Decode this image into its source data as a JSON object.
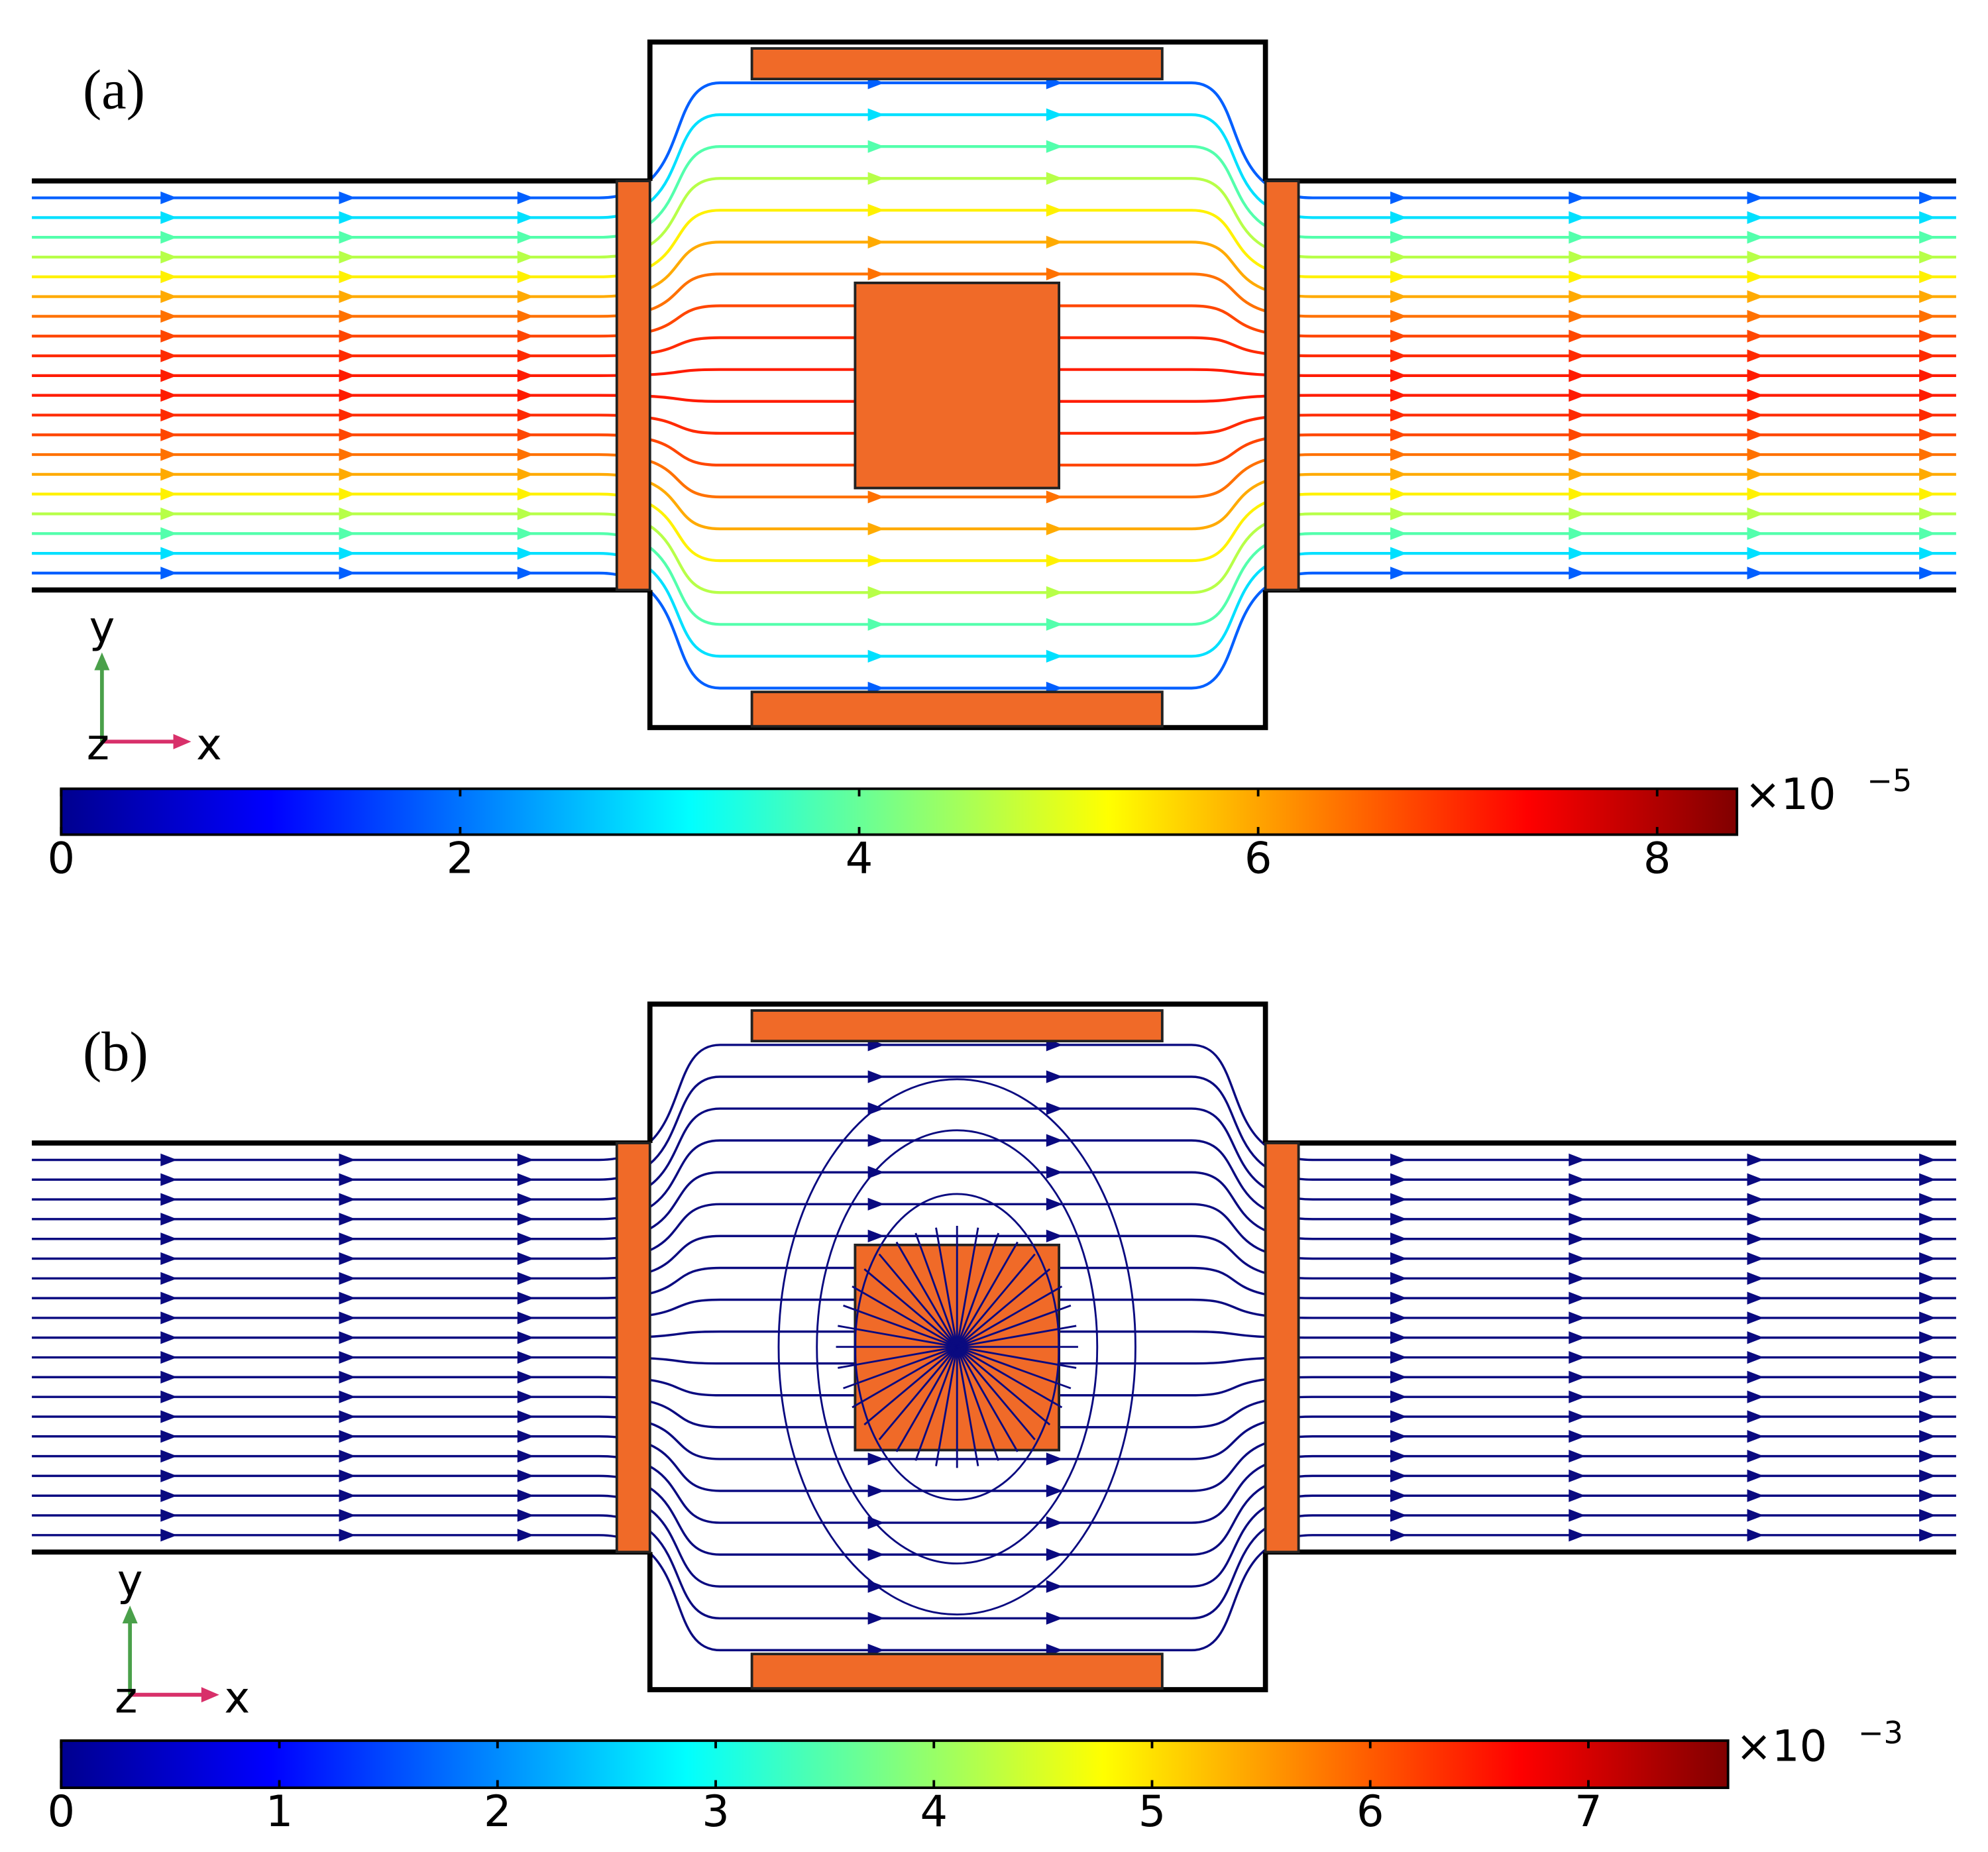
{
  "panels": [
    {
      "label": "(a)",
      "axes": {
        "y": "y",
        "z": "z",
        "x": "x"
      },
      "colorbar": {
        "range": [
          0,
          8.4
        ],
        "ticks": [
          0,
          2,
          4,
          6,
          8
        ],
        "multiplier": "×10",
        "exponent": "−5"
      }
    },
    {
      "label": "(b)",
      "axes": {
        "y": "y",
        "z": "z",
        "x": "x"
      },
      "colorbar": {
        "range": [
          0,
          7.64
        ],
        "ticks": [
          0,
          1,
          2,
          3,
          4,
          5,
          6,
          7
        ],
        "multiplier": "×10",
        "exponent": "−3"
      }
    }
  ]
}
